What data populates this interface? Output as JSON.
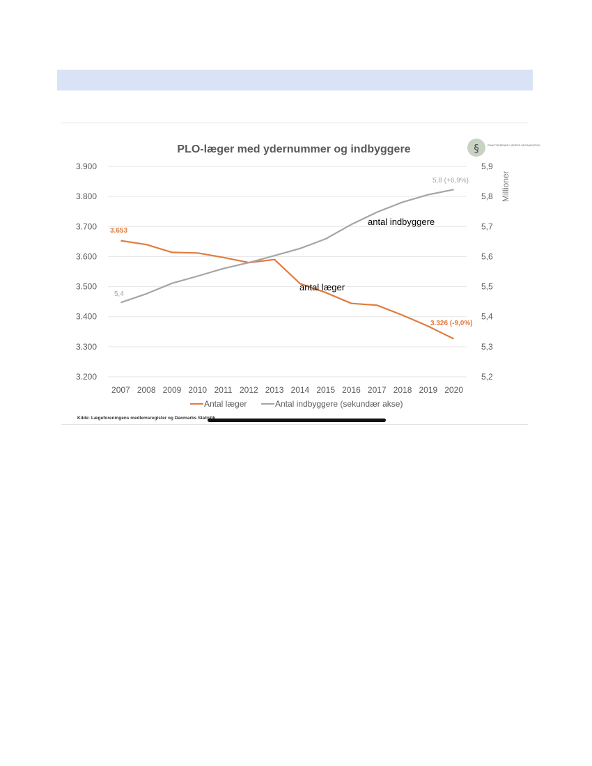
{
  "chart_data": {
    "type": "line",
    "title": "PLO-læger med ydernummer og indbyggere",
    "categories": [
      "2007",
      "2008",
      "2009",
      "2010",
      "2011",
      "2012",
      "2013",
      "2014",
      "2015",
      "2016",
      "2017",
      "2018",
      "2019",
      "2020"
    ],
    "y_left": {
      "ylim": [
        3200,
        3900
      ],
      "ticks": [
        3200,
        3300,
        3400,
        3500,
        3600,
        3700,
        3800,
        3900
      ],
      "tick_labels": [
        "3.200",
        "3.300",
        "3.400",
        "3.500",
        "3.600",
        "3.700",
        "3.800",
        "3.900"
      ]
    },
    "y_right": {
      "ylim": [
        5.2,
        5.9
      ],
      "ticks": [
        5.2,
        5.3,
        5.4,
        5.5,
        5.6,
        5.7,
        5.8,
        5.9
      ],
      "tick_labels": [
        "5,2",
        "5,3",
        "5,4",
        "5,5",
        "5,6",
        "5,7",
        "5,8",
        "5,9"
      ],
      "label": "Millioner"
    },
    "series": [
      {
        "name": "Antal læger",
        "axis": "left",
        "color": "#e07c3e",
        "values": [
          3653,
          3640,
          3614,
          3612,
          3597,
          3580,
          3590,
          3510,
          3480,
          3444,
          3438,
          3405,
          3368,
          3326
        ]
      },
      {
        "name": "Antal indbyggere (sekundær akse)",
        "axis": "right",
        "color": "#a5a5a5",
        "values": [
          5.447,
          5.476,
          5.511,
          5.535,
          5.56,
          5.58,
          5.603,
          5.627,
          5.659,
          5.707,
          5.748,
          5.781,
          5.806,
          5.823
        ]
      }
    ],
    "annotations": {
      "lager_start": "3.653",
      "lager_end": "3.326 (-9,0%)",
      "indbyggere_start": "5,4",
      "indbyggere_end": "5,8 (+6,9%)",
      "overlay_indbyggere": "antal indbyggere",
      "overlay_laeger": "antal læger"
    },
    "legend": {
      "placement": "bottom",
      "entries": [
        "Antal læger",
        "Antal indbyggere (sekundær akse)"
      ]
    },
    "source": "Kilde: Lægeforeningens medlemsregister og Danmarks Statistik",
    "logo_text": "PRAKTISERENDE LÆGERS ORGANISATION"
  },
  "colors": {
    "orange": "#e07c3e",
    "gray": "#a5a5a5",
    "text": "#595959",
    "grid": "#e6e6e6",
    "band": "#dae3f5"
  }
}
